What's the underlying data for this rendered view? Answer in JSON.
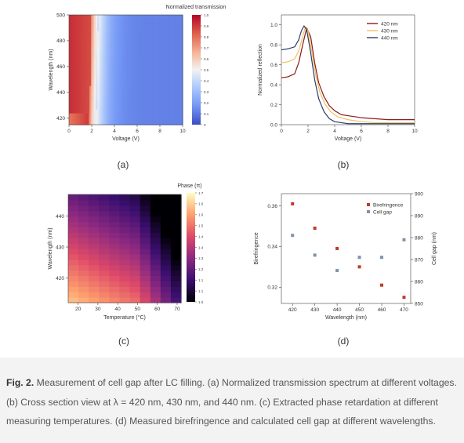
{
  "figure": {
    "caption_label": "Fig. 2.",
    "caption_text": "Measurement of cell gap after LC filling. (a) Normalized transmission spectrum at different voltages. (b) Cross section view at λ = 420 nm, 430 nm, and 440 nm. (c) Extracted phase retardation at different measuring temperatures. (d) Measured birefringence and calculated cell gap at different wavelengths."
  },
  "panels": {
    "a": {
      "label": "(a)"
    },
    "b": {
      "label": "(b)"
    },
    "c": {
      "label": "(c)"
    },
    "d": {
      "label": "(d)"
    }
  },
  "chart_data": [
    {
      "type": "heatmap",
      "title": "Normalized transmission",
      "xlabel": "Voltage (V)",
      "ylabel": "Wavelength (nm)",
      "xlim": [
        0,
        10
      ],
      "ylim": [
        415,
        500
      ],
      "xticks": [
        "0",
        "2",
        "4",
        "6",
        "8",
        "10"
      ],
      "yticks": [
        "420",
        "440",
        "460",
        "480",
        "500"
      ],
      "colorbar_label": "Normalized transmission",
      "colorbar_range": [
        0,
        1
      ],
      "colorbar_ticks": [
        "0",
        "0.1",
        "0.2",
        "0.3",
        "0.4",
        "0.5",
        "0.6",
        "0.7",
        "0.8",
        "0.9",
        "1.0"
      ],
      "colormap": [
        "#3b4cc0",
        "#7396f5",
        "#b0cbfc",
        "#f2f2f2",
        "#f6b89c",
        "#e0654f",
        "#b40426"
      ],
      "peak_voltage_at_420nm": 2.0,
      "peak_voltage_at_500nm": 2.2
    },
    {
      "type": "line",
      "xlabel": "Voltage (V)",
      "ylabel": "Normalized reflection",
      "xlim": [
        0,
        10
      ],
      "ylim": [
        0,
        1.1
      ],
      "xticks": [
        "0",
        "2",
        "4",
        "6",
        "8",
        "10"
      ],
      "yticks": [
        "0.0",
        "0.2",
        "0.4",
        "0.6",
        "0.8",
        "1.0"
      ],
      "legend_position": "top-right",
      "series": [
        {
          "name": "420 nm",
          "color": "#8b1a1a",
          "x": [
            0,
            0.5,
            1.0,
            1.3,
            1.6,
            1.9,
            2.2,
            2.5,
            2.8,
            3.2,
            3.6,
            4.0,
            4.5,
            5,
            6,
            7,
            8,
            9,
            10
          ],
          "y": [
            0.47,
            0.48,
            0.51,
            0.62,
            0.8,
            0.97,
            0.88,
            0.62,
            0.42,
            0.28,
            0.19,
            0.14,
            0.1,
            0.09,
            0.07,
            0.06,
            0.05,
            0.05,
            0.05
          ]
        },
        {
          "name": "430 nm",
          "color": "#f0c060",
          "x": [
            0,
            0.5,
            1.0,
            1.3,
            1.6,
            1.8,
            2.0,
            2.3,
            2.6,
            2.9,
            3.3,
            3.7,
            4.2,
            5,
            6,
            7,
            8,
            9,
            10
          ],
          "y": [
            0.62,
            0.63,
            0.66,
            0.74,
            0.88,
            0.98,
            0.94,
            0.72,
            0.48,
            0.32,
            0.2,
            0.13,
            0.08,
            0.05,
            0.03,
            0.02,
            0.02,
            0.02,
            0.02
          ]
        },
        {
          "name": "440 nm",
          "color": "#2c3e6b",
          "x": [
            0,
            0.5,
            1.0,
            1.3,
            1.5,
            1.7,
            1.9,
            2.2,
            2.5,
            2.8,
            3.2,
            3.6,
            4.0,
            5,
            6,
            7,
            8,
            9,
            10
          ],
          "y": [
            0.75,
            0.76,
            0.78,
            0.85,
            0.94,
            0.99,
            0.95,
            0.72,
            0.45,
            0.26,
            0.13,
            0.06,
            0.03,
            0.01,
            0.01,
            0.01,
            0.01,
            0.01,
            0.01
          ]
        }
      ]
    },
    {
      "type": "heatmap",
      "title": "Phase (π)",
      "xlabel": "Temperature (°C)",
      "ylabel": "Wavelength (nm)",
      "xlim": [
        15,
        72
      ],
      "ylim": [
        412,
        447
      ],
      "xticks": [
        "20",
        "30",
        "40",
        "50",
        "60",
        "70"
      ],
      "yticks": [
        "420",
        "430",
        "440"
      ],
      "colorbar_label": "Phase (π)",
      "colorbar_range": [
        1.0,
        1.7
      ],
      "colorbar_ticks": [
        "1.0",
        "1.1",
        "1.1",
        "1.2",
        "1.3",
        "1.4",
        "1.4",
        "1.5",
        "1.6",
        "1.6",
        "1.7"
      ],
      "colormap": [
        "#000004",
        "#3b0f70",
        "#8c2981",
        "#de4968",
        "#fe9f6d",
        "#fcfdbf"
      ],
      "phase_min": 1.0,
      "phase_max": 1.7
    },
    {
      "type": "scatter",
      "xlabel": "Wavelength (nm)",
      "ylabel": "Birefringence",
      "y2label": "Cell gap (nm)",
      "xlim": [
        415,
        473
      ],
      "ylim": [
        0.312,
        0.366
      ],
      "y2lim": [
        850,
        900
      ],
      "xticks": [
        "420",
        "430",
        "440",
        "450",
        "460",
        "470"
      ],
      "yticks": [
        "0.32",
        "0.34",
        "0.36"
      ],
      "y2ticks": [
        "850",
        "860",
        "870",
        "880",
        "890",
        "900"
      ],
      "legend_position": "top-right",
      "series": [
        {
          "name": "Birefringence",
          "color": "#c0392b",
          "axis": "left",
          "x": [
            420,
            430,
            440,
            450,
            460,
            470
          ],
          "y": [
            0.361,
            0.349,
            0.339,
            0.33,
            0.321,
            0.315
          ]
        },
        {
          "name": "Cell gap",
          "color": "#7f93a8",
          "axis": "right",
          "x": [
            420,
            430,
            440,
            450,
            460,
            470
          ],
          "y": [
            881,
            872,
            865,
            871,
            871,
            879
          ]
        }
      ]
    }
  ]
}
